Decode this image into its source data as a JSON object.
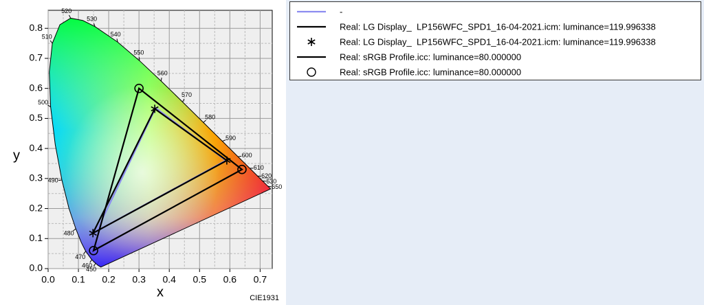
{
  "chart_data": {
    "type": "chromaticity",
    "xlabel": "x",
    "ylabel": "y",
    "annotation": "CIE1931",
    "xlim": [
      0,
      0.74
    ],
    "ylim": [
      0,
      0.86
    ],
    "xticks": [
      {
        "value": 0,
        "label": "0.0"
      },
      {
        "value": 0.1,
        "label": "0.1"
      },
      {
        "value": 0.2,
        "label": "0.2"
      },
      {
        "value": 0.3,
        "label": "0.3"
      },
      {
        "value": 0.4,
        "label": "0.4"
      },
      {
        "value": 0.5,
        "label": "0.5"
      },
      {
        "value": 0.6,
        "label": "0.6"
      },
      {
        "value": 0.7,
        "label": "0.7"
      }
    ],
    "yticks": [
      {
        "value": 0,
        "label": "0.0"
      },
      {
        "value": 0.1,
        "label": "0.1"
      },
      {
        "value": 0.2,
        "label": "0.2"
      },
      {
        "value": 0.3,
        "label": "0.3"
      },
      {
        "value": 0.4,
        "label": "0.4"
      },
      {
        "value": 0.5,
        "label": "0.5"
      },
      {
        "value": 0.6,
        "label": "0.6"
      },
      {
        "value": 0.7,
        "label": "0.7"
      },
      {
        "value": 0.8,
        "label": "0.8"
      }
    ],
    "grid": true,
    "locus": {
      "labels": [
        null,
        null,
        "450",
        "460",
        "470",
        null,
        "480",
        null,
        "490",
        null,
        "500",
        null,
        "510",
        null,
        "520",
        null,
        "530",
        "540",
        "550",
        "560",
        "570",
        "580",
        "590",
        "600",
        "610",
        "620",
        "630",
        "650",
        null
      ],
      "x": [
        0.1741,
        0.1644,
        0.1566,
        0.144,
        0.1241,
        0.1096,
        0.0913,
        0.0687,
        0.0454,
        0.0235,
        0.0082,
        0.0039,
        0.0139,
        0.0389,
        0.0743,
        0.1142,
        0.1547,
        0.2296,
        0.3016,
        0.3731,
        0.4441,
        0.5125,
        0.5752,
        0.627,
        0.6658,
        0.6915,
        0.7079,
        0.726,
        0.7347
      ],
      "y": [
        0.005,
        0.0109,
        0.0177,
        0.0297,
        0.0578,
        0.0868,
        0.1327,
        0.2007,
        0.295,
        0.4127,
        0.5384,
        0.6548,
        0.7502,
        0.812,
        0.8338,
        0.8262,
        0.8059,
        0.7543,
        0.6923,
        0.6245,
        0.5547,
        0.4866,
        0.4242,
        0.3725,
        0.334,
        0.3083,
        0.292,
        0.274,
        0.2653
      ]
    },
    "series": [
      {
        "name": "-",
        "color": "#8c8cf0",
        "style": "line",
        "x": [
          0.587,
          0.355,
          0.16
        ],
        "y": [
          0.36,
          0.535,
          0.125
        ]
      },
      {
        "name": "Real: LG Display_  LP156WFC_SPD1_16-04-2021.icm: luminance=119.996338",
        "color": "#000000",
        "style": "line",
        "x": [
          0.59,
          0.352,
          0.148
        ],
        "y": [
          0.36,
          0.532,
          0.118
        ]
      },
      {
        "name": "Real: LG Display_  LP156WFC_SPD1_16-04-2021.icm: luminance=119.996338",
        "color": "#000000",
        "style": "asterisk",
        "x": [
          0.59,
          0.352,
          0.148
        ],
        "y": [
          0.36,
          0.532,
          0.118
        ]
      },
      {
        "name": "Real: sRGB Profile.icc: luminance=80.000000",
        "color": "#000000",
        "style": "line",
        "x": [
          0.64,
          0.3,
          0.15
        ],
        "y": [
          0.33,
          0.6,
          0.06
        ]
      },
      {
        "name": "Real: sRGB Profile.icc: luminance=80.000000",
        "color": "#000000",
        "style": "circle",
        "x": [
          0.64,
          0.3,
          0.15
        ],
        "y": [
          0.33,
          0.6,
          0.06
        ]
      }
    ]
  }
}
